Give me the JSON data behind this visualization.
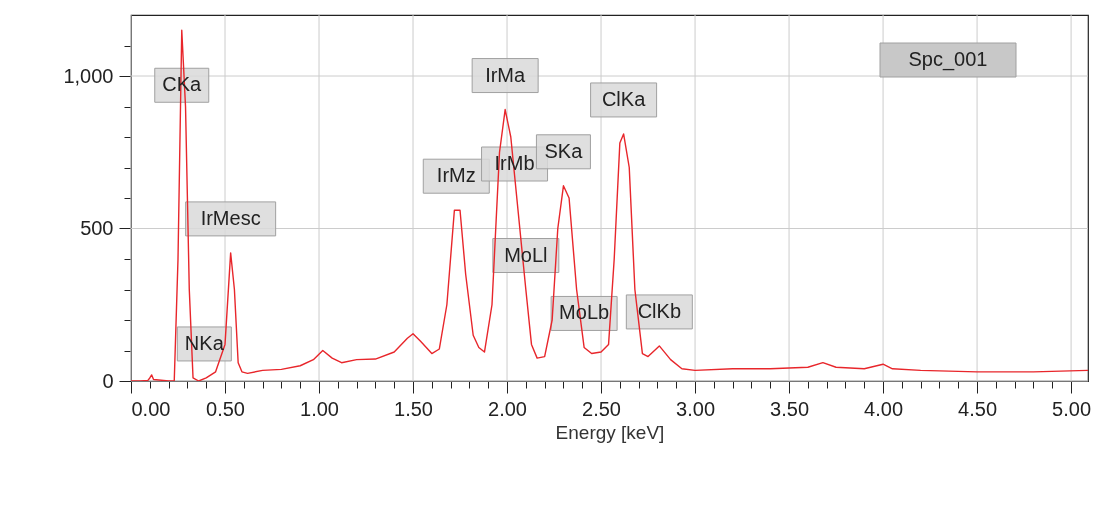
{
  "chart_data": {
    "type": "line",
    "xlabel": "Energy [keV]",
    "x": [
      0,
      0.05,
      0.09,
      0.1,
      0.11,
      0.12,
      0.2,
      0.23,
      0.25,
      0.27,
      0.29,
      0.31,
      0.33,
      0.36,
      0.4,
      0.45,
      0.5,
      0.53,
      0.55,
      0.57,
      0.59,
      0.62,
      0.7,
      0.8,
      0.9,
      0.97,
      1.02,
      1.07,
      1.12,
      1.2,
      1.3,
      1.4,
      1.47,
      1.5,
      1.54,
      1.6,
      1.64,
      1.68,
      1.72,
      1.75,
      1.78,
      1.82,
      1.85,
      1.88,
      1.92,
      1.96,
      1.99,
      2.02,
      2.06,
      2.1,
      2.13,
      2.16,
      2.2,
      2.24,
      2.27,
      2.3,
      2.33,
      2.37,
      2.41,
      2.45,
      2.5,
      2.54,
      2.57,
      2.6,
      2.62,
      2.65,
      2.68,
      2.72,
      2.75,
      2.81,
      2.87,
      2.93,
      3.0,
      3.2,
      3.4,
      3.6,
      3.68,
      3.75,
      3.9,
      4.0,
      4.05,
      4.2,
      4.5,
      4.8,
      5.09
    ],
    "series": [
      {
        "color": "#e8262b",
        "values": [
          0,
          0,
          2,
          10,
          20,
          5,
          0,
          0,
          400,
          1150,
          900,
          300,
          10,
          0,
          10,
          30,
          120,
          420,
          300,
          60,
          30,
          25,
          35,
          38,
          50,
          70,
          100,
          75,
          60,
          70,
          72,
          95,
          140,
          155,
          130,
          90,
          105,
          250,
          560,
          560,
          350,
          150,
          110,
          95,
          250,
          750,
          890,
          800,
          550,
          300,
          120,
          75,
          80,
          200,
          500,
          640,
          600,
          300,
          110,
          90,
          95,
          120,
          400,
          780,
          810,
          700,
          300,
          90,
          80,
          115,
          70,
          40,
          35,
          40,
          40,
          45,
          60,
          45,
          40,
          55,
          40,
          35,
          30,
          30,
          35
        ]
      }
    ],
    "xlim": [
      0,
      5.09
    ],
    "xticks": [
      {
        "value": 0,
        "label": "0.00"
      },
      {
        "value": 0.1,
        "label": null
      },
      {
        "value": 0.2,
        "label": null
      },
      {
        "value": 0.3,
        "label": null
      },
      {
        "value": 0.4,
        "label": null
      },
      {
        "value": 0.5,
        "label": "0.50"
      },
      {
        "value": 0.6,
        "label": null
      },
      {
        "value": 0.7,
        "label": null
      },
      {
        "value": 0.8,
        "label": null
      },
      {
        "value": 0.9,
        "label": null
      },
      {
        "value": 1,
        "label": "1.00"
      },
      {
        "value": 1.1,
        "label": null
      },
      {
        "value": 1.2,
        "label": null
      },
      {
        "value": 1.3,
        "label": null
      },
      {
        "value": 1.4,
        "label": null
      },
      {
        "value": 1.5,
        "label": "1.50"
      },
      {
        "value": 1.6,
        "label": null
      },
      {
        "value": 1.7,
        "label": null
      },
      {
        "value": 1.8,
        "label": null
      },
      {
        "value": 1.9,
        "label": null
      },
      {
        "value": 2,
        "label": "2.00"
      },
      {
        "value": 2.1,
        "label": null
      },
      {
        "value": 2.2,
        "label": null
      },
      {
        "value": 2.3,
        "label": null
      },
      {
        "value": 2.4,
        "label": null
      },
      {
        "value": 2.5,
        "label": "2.50"
      },
      {
        "value": 2.6,
        "label": null
      },
      {
        "value": 2.7,
        "label": null
      },
      {
        "value": 2.8,
        "label": null
      },
      {
        "value": 2.9,
        "label": null
      },
      {
        "value": 3,
        "label": "3.00"
      },
      {
        "value": 3.1,
        "label": null
      },
      {
        "value": 3.2,
        "label": null
      },
      {
        "value": 3.3,
        "label": null
      },
      {
        "value": 3.4,
        "label": null
      },
      {
        "value": 3.5,
        "label": "3.50"
      },
      {
        "value": 3.6,
        "label": null
      },
      {
        "value": 3.7,
        "label": null
      },
      {
        "value": 3.8,
        "label": null
      },
      {
        "value": 3.9,
        "label": null
      },
      {
        "value": 4,
        "label": "4.00"
      },
      {
        "value": 4.1,
        "label": null
      },
      {
        "value": 4.2,
        "label": null
      },
      {
        "value": 4.3,
        "label": null
      },
      {
        "value": 4.4,
        "label": null
      },
      {
        "value": 4.5,
        "label": "4.50"
      },
      {
        "value": 4.6,
        "label": null
      },
      {
        "value": 4.7,
        "label": null
      },
      {
        "value": 4.8,
        "label": null
      },
      {
        "value": 4.9,
        "label": null
      },
      {
        "value": 5,
        "label": "5.00"
      }
    ],
    "ylim": [
      0,
      1200
    ],
    "yticks": [
      0,
      {
        "value": 100,
        "label": null
      },
      {
        "value": 200,
        "label": null
      },
      {
        "value": 300,
        "label": null
      },
      {
        "value": 400,
        "label": null
      },
      500,
      {
        "value": 600,
        "label": null
      },
      {
        "value": 700,
        "label": null
      },
      {
        "value": 800,
        "label": null
      },
      {
        "value": 900,
        "label": null
      },
      {
        "value": 1000,
        "label": "1,000"
      },
      {
        "value": 1100,
        "label": null
      }
    ],
    "grid": true,
    "annotations": [
      {
        "text": "CKa",
        "x": 0.27,
        "y": 1150
      },
      {
        "text": "IrMesc",
        "x": 0.53,
        "y": 420
      },
      {
        "text": "NKa",
        "x": 0.39,
        "y": 10
      },
      {
        "text": "IrMz",
        "x": 1.73,
        "y": 560
      },
      {
        "text": "IrMa",
        "x": 1.99,
        "y": 890
      },
      {
        "text": "IrMb",
        "x": 2.04,
        "y": 600
      },
      {
        "text": "MoLl",
        "x": 2.1,
        "y": 300
      },
      {
        "text": "SKa",
        "x": 2.3,
        "y": 640
      },
      {
        "text": "MoLb",
        "x": 2.41,
        "y": 110
      },
      {
        "text": "ClKa",
        "x": 2.62,
        "y": 810
      },
      {
        "text": "ClKb",
        "x": 2.81,
        "y": 115
      },
      "Spc_001"
    ]
  }
}
